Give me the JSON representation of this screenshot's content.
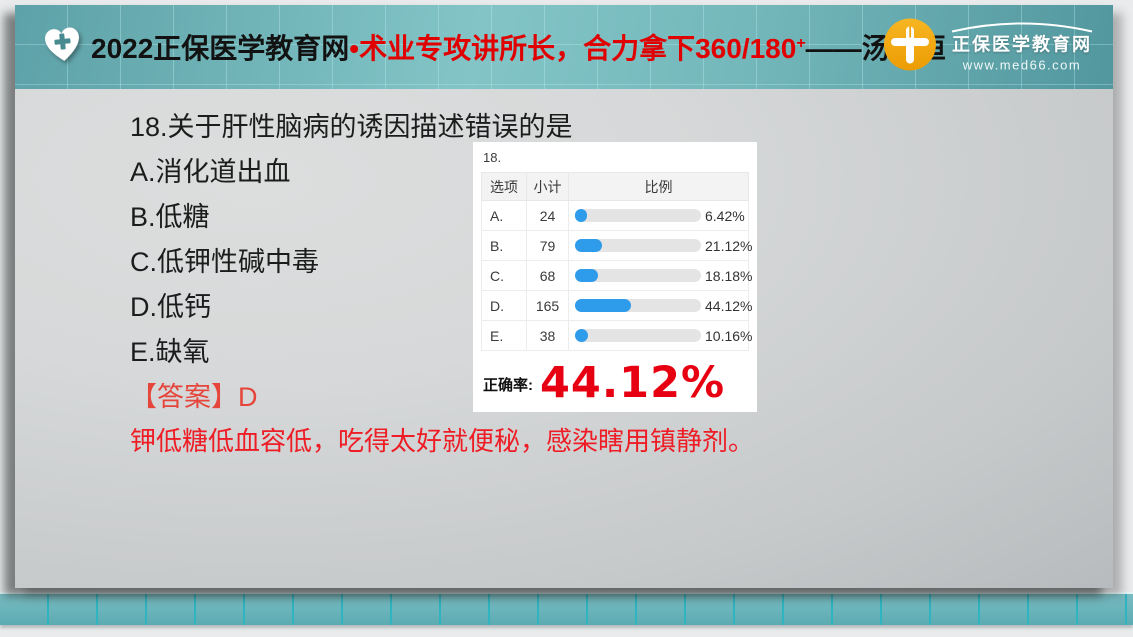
{
  "header": {
    "title_prefix": "2022正保医学教育网",
    "title_red": "•术业专攻讲所长，合力拿下360/180",
    "title_red_sup": "+",
    "title_suffix": "——汤以恒",
    "logo": {
      "name": "正保医学教育网",
      "url": "www.med66.com"
    }
  },
  "question": {
    "title": "18.关于肝性脑病的诱因描述错误的是",
    "options": [
      "A.消化道出血",
      "B.低糖",
      "C.低钾性碱中毒",
      "D.低钙",
      "E.缺氧"
    ],
    "answer_label": "【答案】D",
    "explanation": "钾低糖低血容低，吃得太好就便秘，感染瞎用镇静剂。"
  },
  "poll": {
    "question_no": "18.",
    "columns": [
      "选项",
      "小计",
      "比例"
    ],
    "rows": [
      {
        "option": "A.",
        "count": 24,
        "percent": "6.42%",
        "value": 6.42
      },
      {
        "option": "B.",
        "count": 79,
        "percent": "21.12%",
        "value": 21.12
      },
      {
        "option": "C.",
        "count": 68,
        "percent": "18.18%",
        "value": 18.18
      },
      {
        "option": "D.",
        "count": 165,
        "percent": "44.12%",
        "value": 44.12
      },
      {
        "option": "E.",
        "count": 38,
        "percent": "10.16%",
        "value": 10.16
      }
    ],
    "accuracy_label": "正确率:",
    "accuracy_value": "44.12%"
  },
  "chart_data": {
    "type": "bar",
    "title": "18.",
    "categories": [
      "A.",
      "B.",
      "C.",
      "D.",
      "E."
    ],
    "series": [
      {
        "name": "小计",
        "values": [
          24,
          79,
          68,
          165,
          38
        ]
      },
      {
        "name": "比例(%)",
        "values": [
          6.42,
          21.12,
          18.18,
          44.12,
          10.16
        ]
      }
    ],
    "xlabel": "",
    "ylabel": "",
    "xlim": [
      0,
      100
    ],
    "note": "正确率 44.12%"
  },
  "colors": {
    "header_teal": "#74b8bb",
    "strip_teal": "#68b2b8",
    "strip_line": "#2fb4c1",
    "bar_blue": "#2f9ceb",
    "bar_track": "#e4e4e4",
    "accuracy_red": "#e60012",
    "answer_red": "#e5453a",
    "explanation_red": "#ee1c24",
    "brand_orange": "#f2a50a",
    "header_red_text": "#e10000"
  }
}
